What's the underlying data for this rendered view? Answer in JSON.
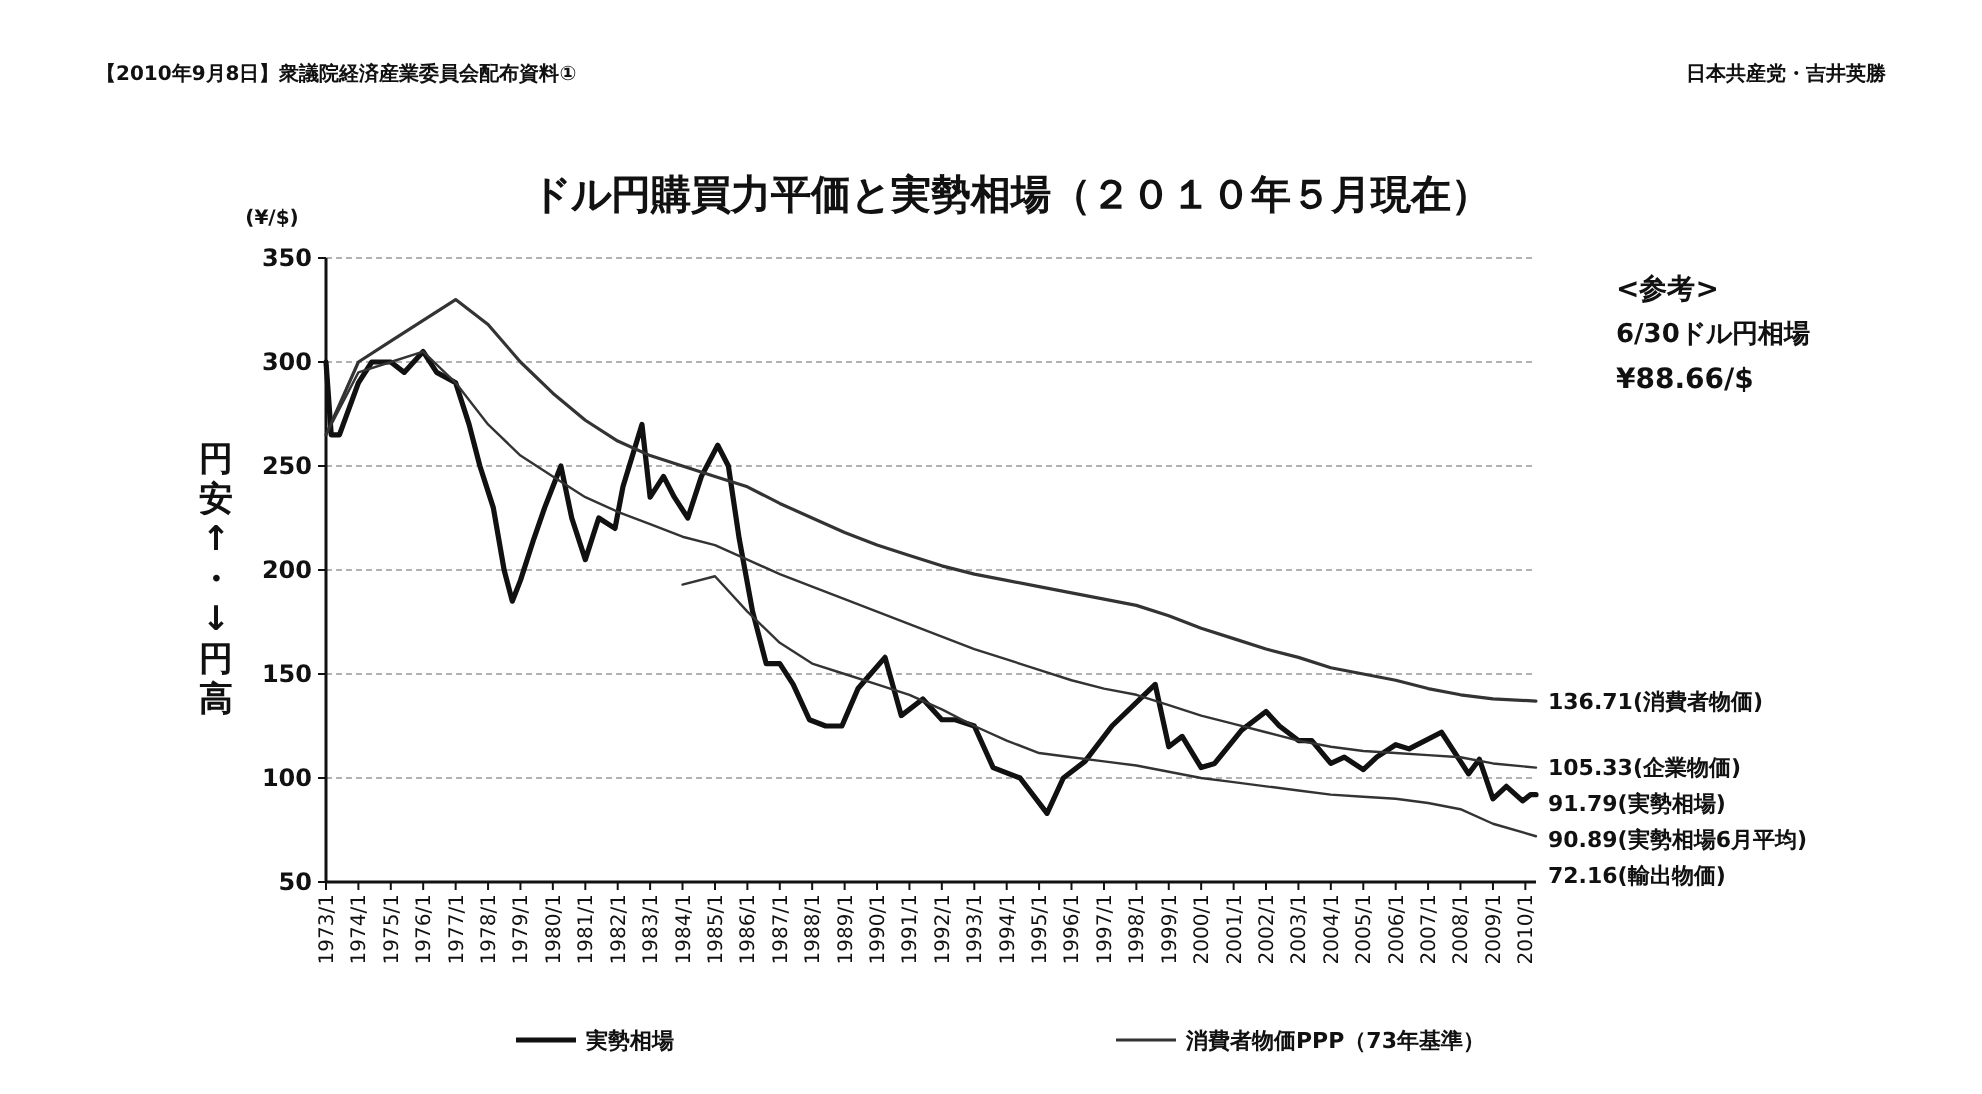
{
  "chart_data": {
    "type": "line",
    "title": "ドル円購買力平価と実勢相場（２０１０年５月現在）",
    "ylabel": "円安↑・↓円高",
    "annotations": [
      "【2010年9月8日】衆議院経済産業委員会配布資料①",
      "日本共産党・吉井英勝",
      "(¥/$)",
      "<参考>",
      "6/30ドル円相場",
      "¥88.66/$",
      {
        "text": "136.71(消費者物価)",
        "x": "2010-05",
        "y": 136.71
      },
      {
        "text": "105.33(企業物価)",
        "x": "2010-05",
        "y": 105.33
      },
      {
        "text": "91.79(実勢相場)",
        "x": "2010-05",
        "y": 91.79
      },
      {
        "text": "90.89(実勢相場6月平均)",
        "x": "2010-05",
        "y": 90.89
      },
      {
        "text": "72.16(輸出物価)",
        "x": "2010-05",
        "y": 72.16
      }
    ],
    "xlim": [
      "1973-01",
      "2010-05"
    ],
    "xticks": [
      {
        "value": "1973-01",
        "label": "1973/1"
      },
      {
        "value": "1974-01",
        "label": "1974/1"
      },
      {
        "value": "1975-01",
        "label": "1975/1"
      },
      {
        "value": "1976-01",
        "label": "1976/1"
      },
      {
        "value": "1977-01",
        "label": "1977/1"
      },
      {
        "value": "1978-01",
        "label": "1978/1"
      },
      {
        "value": "1979-01",
        "label": "1979/1"
      },
      {
        "value": "1980-01",
        "label": "1980/1"
      },
      {
        "value": "1981-01",
        "label": "1981/1"
      },
      {
        "value": "1982-01",
        "label": "1982/1"
      },
      {
        "value": "1983-01",
        "label": "1983/1"
      },
      {
        "value": "1984-01",
        "label": "1984/1"
      },
      {
        "value": "1985-01",
        "label": "1985/1"
      },
      {
        "value": "1986-01",
        "label": "1986/1"
      },
      {
        "value": "1987-01",
        "label": "1987/1"
      },
      {
        "value": "1988-01",
        "label": "1988/1"
      },
      {
        "value": "1989-01",
        "label": "1989/1"
      },
      {
        "value": "1990-01",
        "label": "1990/1"
      },
      {
        "value": "1991-01",
        "label": "1991/1"
      },
      {
        "value": "1992-01",
        "label": "1992/1"
      },
      {
        "value": "1993-01",
        "label": "1993/1"
      },
      {
        "value": "1994-01",
        "label": "1994/1"
      },
      {
        "value": "1995-01",
        "label": "1995/1"
      },
      {
        "value": "1996-01",
        "label": "1996/1"
      },
      {
        "value": "1997-01",
        "label": "1997/1"
      },
      {
        "value": "1998-01",
        "label": "1998/1"
      },
      {
        "value": "1999-01",
        "label": "1999/1"
      },
      {
        "value": "2000-01",
        "label": "2000/1"
      },
      {
        "value": "2001-01",
        "label": "2001/1"
      },
      {
        "value": "2002-01",
        "label": "2002/1"
      },
      {
        "value": "2003-01",
        "label": "2003/1"
      },
      {
        "value": "2004-01",
        "label": "2004/1"
      },
      {
        "value": "2005-01",
        "label": "2005/1"
      },
      {
        "value": "2006-01",
        "label": "2006/1"
      },
      {
        "value": "2007-01",
        "label": "2007/1"
      },
      {
        "value": "2008-01",
        "label": "2008/1"
      },
      {
        "value": "2009-01",
        "label": "2009/1"
      },
      {
        "value": "2010-01",
        "label": "2010/1"
      }
    ],
    "ylim": [
      50,
      350
    ],
    "yticks": [
      50,
      100,
      150,
      200,
      250,
      300,
      350
    ],
    "grid": "y",
    "legend": "bottom",
    "line_style": "solid",
    "series": [
      {
        "name": "実勢相場",
        "color": "#111111",
        "x": [
          "1973-01",
          "1973-03",
          "1973-06",
          "1974-01",
          "1974-06",
          "1975-01",
          "1975-06",
          "1976-01",
          "1976-06",
          "1977-01",
          "1977-06",
          "1977-10",
          "1978-03",
          "1978-07",
          "1978-10",
          "1979-01",
          "1979-06",
          "1979-10",
          "1980-04",
          "1980-08",
          "1981-01",
          "1981-06",
          "1981-12",
          "1982-03",
          "1982-10",
          "1983-01",
          "1983-06",
          "1983-10",
          "1984-03",
          "1984-08",
          "1985-02",
          "1985-06",
          "1985-10",
          "1986-03",
          "1986-08",
          "1987-01",
          "1987-06",
          "1987-12",
          "1988-06",
          "1988-12",
          "1989-06",
          "1990-04",
          "1990-10",
          "1991-06",
          "1992-01",
          "1992-06",
          "1993-01",
          "1993-08",
          "1994-06",
          "1995-04",
          "1995-10",
          "1996-06",
          "1997-04",
          "1998-08",
          "1999-01",
          "1999-06",
          "2000-01",
          "2000-06",
          "2001-04",
          "2002-01",
          "2002-06",
          "2003-01",
          "2003-06",
          "2004-01",
          "2004-06",
          "2005-01",
          "2005-06",
          "2006-01",
          "2006-06",
          "2007-06",
          "2008-01",
          "2008-04",
          "2008-08",
          "2009-01",
          "2009-06",
          "2009-12",
          "2010-03",
          "2010-05"
        ],
        "values": [
          300,
          265,
          265,
          290,
          300,
          300,
          295,
          305,
          295,
          290,
          270,
          250,
          230,
          200,
          185,
          195,
          215,
          230,
          250,
          225,
          205,
          225,
          220,
          240,
          270,
          235,
          245,
          235,
          225,
          245,
          260,
          250,
          215,
          180,
          155,
          155,
          145,
          128,
          125,
          125,
          143,
          158,
          130,
          138,
          128,
          128,
          125,
          105,
          100,
          83,
          100,
          108,
          125,
          145,
          115,
          120,
          105,
          107,
          123,
          132,
          125,
          118,
          118,
          107,
          110,
          104,
          110,
          116,
          114,
          122,
          108,
          102,
          109,
          90,
          96,
          89,
          92,
          92
        ]
      },
      {
        "name": "消費者物価PPP（73年基準）",
        "color": "#333333",
        "x": [
          "1973-01",
          "1974-01",
          "1975-01",
          "1976-01",
          "1977-01",
          "1978-01",
          "1979-01",
          "1980-01",
          "1981-01",
          "1982-01",
          "1983-01",
          "1984-01",
          "1985-01",
          "1986-01",
          "1987-01",
          "1988-01",
          "1989-01",
          "1990-01",
          "1991-01",
          "1992-01",
          "1993-01",
          "1994-01",
          "1995-01",
          "1996-01",
          "1997-01",
          "1998-01",
          "1999-01",
          "2000-01",
          "2001-01",
          "2002-01",
          "2003-01",
          "2004-01",
          "2005-01",
          "2006-01",
          "2007-01",
          "2008-01",
          "2009-01",
          "2010-05"
        ],
        "values": [
          265,
          300,
          310,
          320,
          330,
          318,
          300,
          285,
          272,
          262,
          255,
          250,
          245,
          240,
          232,
          225,
          218,
          212,
          207,
          202,
          198,
          195,
          192,
          189,
          186,
          183,
          178,
          172,
          167,
          162,
          158,
          153,
          150,
          147,
          143,
          140,
          138,
          137
        ]
      },
      {
        "color": "#333333",
        "x": [
          "1973-01",
          "1974-01",
          "1975-01",
          "1976-01",
          "1977-01",
          "1978-01",
          "1979-01",
          "1980-01",
          "1981-01",
          "1982-01",
          "1983-01",
          "1984-01",
          "1985-01",
          "1986-01",
          "1987-01",
          "1988-01",
          "1989-01",
          "1990-01",
          "1991-01",
          "1992-01",
          "1993-01",
          "1994-01",
          "1995-01",
          "1996-01",
          "1997-01",
          "1998-01",
          "1999-01",
          "2000-01",
          "2001-01",
          "2002-01",
          "2003-01",
          "2004-01",
          "2005-01",
          "2006-01",
          "2007-01",
          "2008-01",
          "2009-01",
          "2010-05"
        ],
        "values": [
          265,
          295,
          300,
          305,
          290,
          270,
          255,
          245,
          235,
          228,
          222,
          216,
          212,
          205,
          198,
          192,
          186,
          180,
          174,
          168,
          162,
          157,
          152,
          147,
          143,
          140,
          135,
          130,
          126,
          122,
          118,
          115,
          113,
          112,
          111,
          110,
          107,
          105
        ]
      },
      {
        "color": "#333333",
        "x": [
          "1984-01",
          "1985-01",
          "1986-01",
          "1987-01",
          "1988-01",
          "1989-01",
          "1990-01",
          "1991-01",
          "1992-01",
          "1993-01",
          "1994-01",
          "1995-01",
          "1996-01",
          "1997-01",
          "1998-01",
          "1999-01",
          "2000-01",
          "2001-01",
          "2002-01",
          "2003-01",
          "2004-01",
          "2005-01",
          "2006-01",
          "2007-01",
          "2008-01",
          "2009-01",
          "2010-05"
        ],
        "values": [
          193,
          197,
          180,
          165,
          155,
          150,
          145,
          140,
          133,
          125,
          118,
          112,
          110,
          108,
          106,
          103,
          100,
          98,
          96,
          94,
          92,
          91,
          90,
          88,
          85,
          78,
          72
        ]
      }
    ]
  }
}
